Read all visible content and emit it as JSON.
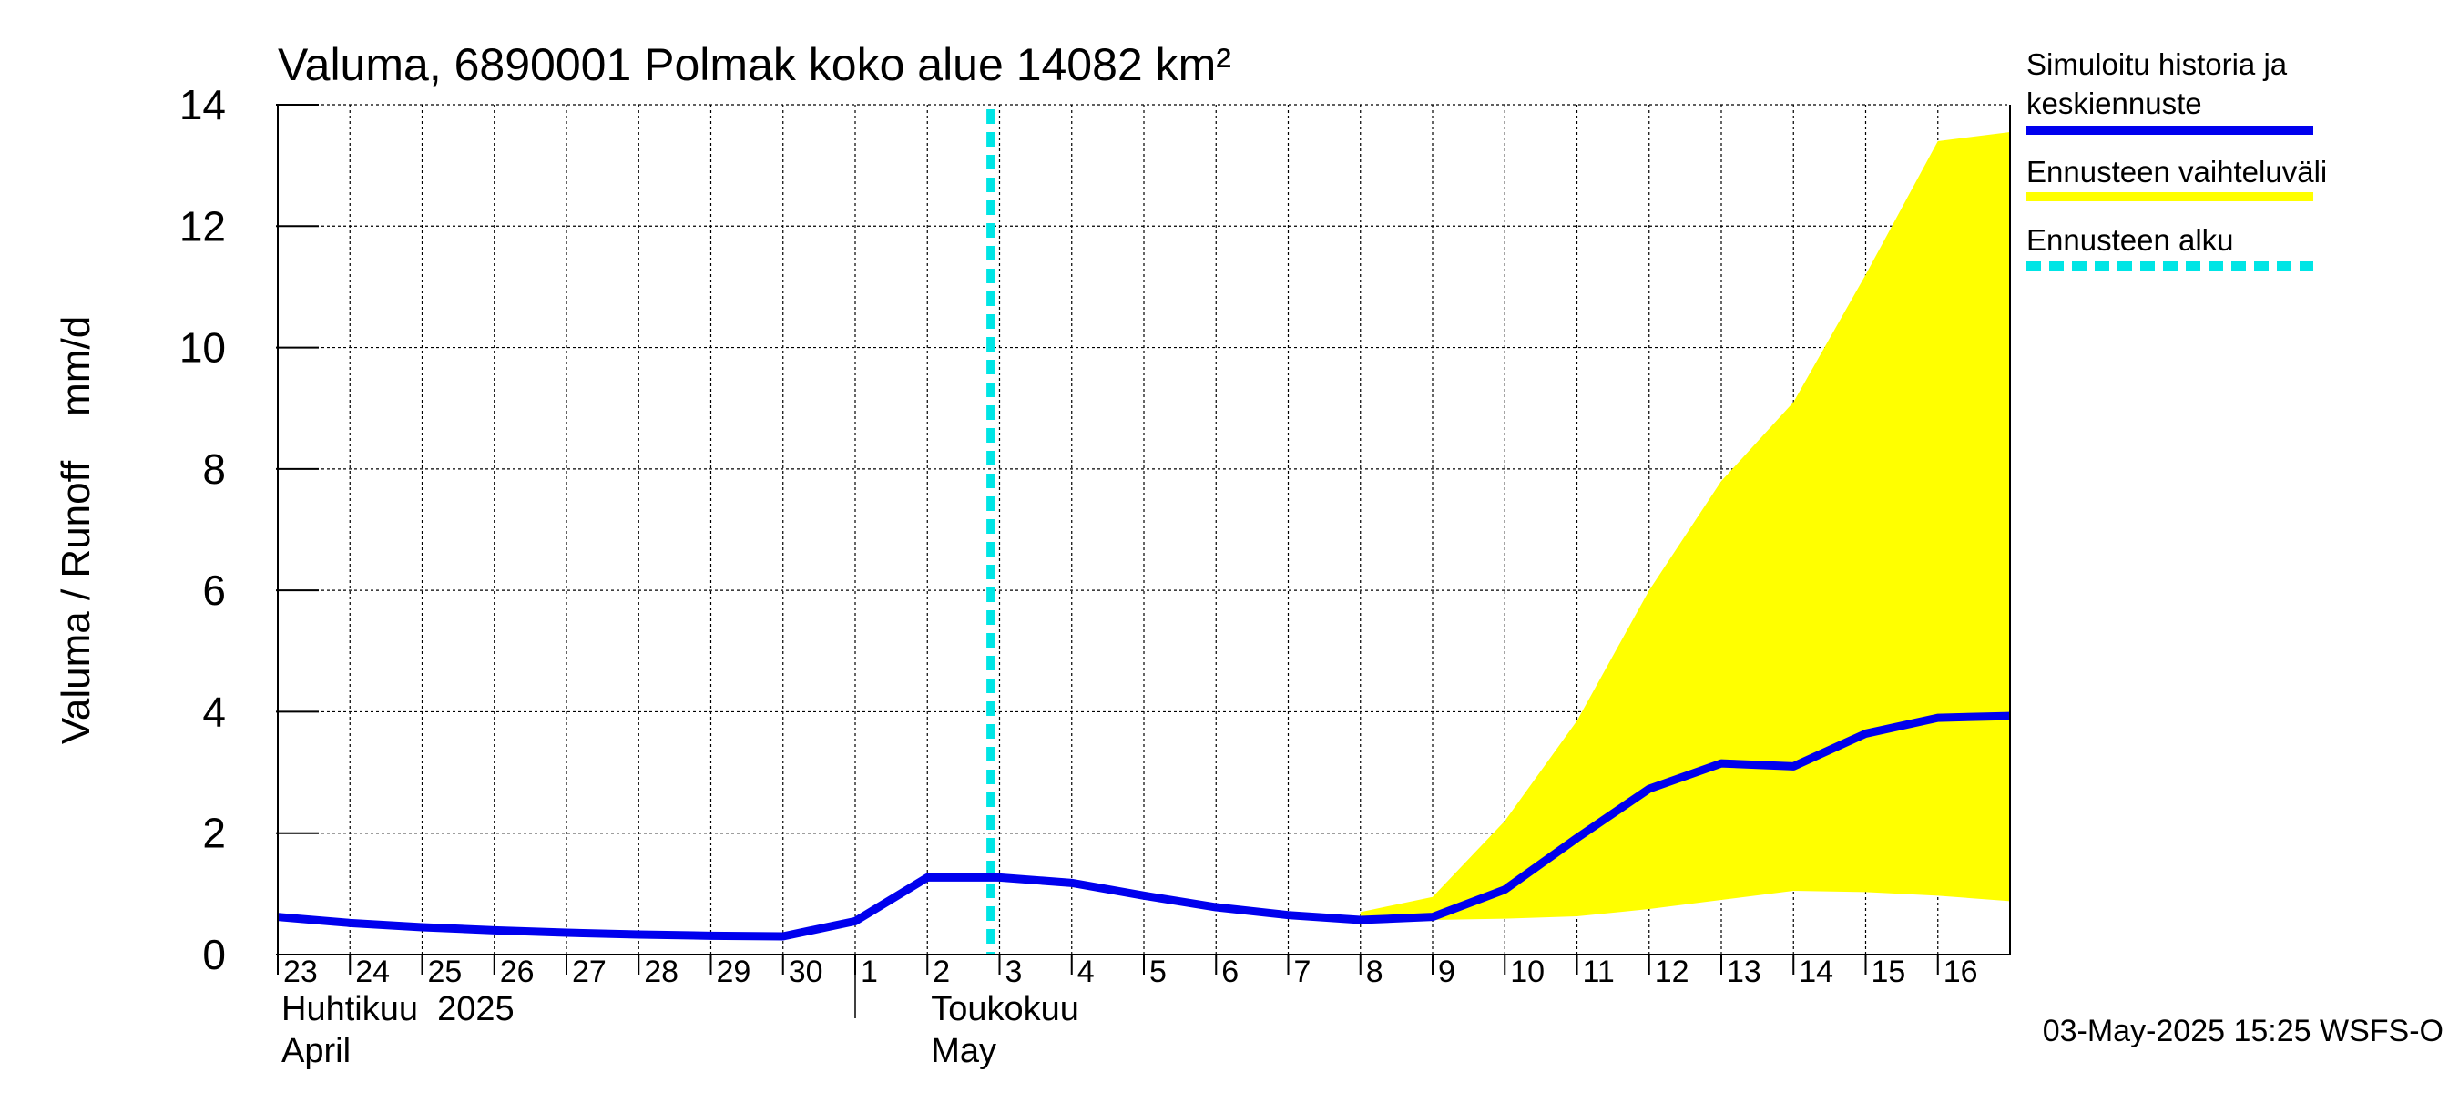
{
  "chart_data": {
    "type": "line",
    "title": "Valuma, 6890001 Polmak koko alue 14082 km²",
    "ylabel": "Valuma / Runoff    mm/d",
    "ylim": [
      0,
      14
    ],
    "yticks": [
      0,
      2,
      4,
      6,
      8,
      10,
      12,
      14
    ],
    "xlim": [
      "2025-04-23",
      "2025-05-16T24:00"
    ],
    "x_day_labels": [
      "23",
      "24",
      "25",
      "26",
      "27",
      "28",
      "29",
      "30",
      "1",
      "2",
      "3",
      "4",
      "5",
      "6",
      "7",
      "8",
      "9",
      "10",
      "11",
      "12",
      "13",
      "14",
      "15",
      "16"
    ],
    "month_labels": [
      {
        "fi": "Huhtikuu  2025",
        "en": "April"
      },
      {
        "fi": "Toukokuu",
        "en": "May"
      }
    ],
    "grid": true,
    "legend_position": "right",
    "forecast_start": "2025-05-02T21:00",
    "series": [
      {
        "name": "Simuloitu historia ja keskiennuste",
        "color": "#0000ee",
        "points": [
          [
            "2025-04-23",
            0.62
          ],
          [
            "2025-04-24",
            0.52
          ],
          [
            "2025-04-25",
            0.45
          ],
          [
            "2025-04-26",
            0.4
          ],
          [
            "2025-04-27",
            0.36
          ],
          [
            "2025-04-28",
            0.33
          ],
          [
            "2025-04-29",
            0.31
          ],
          [
            "2025-04-30",
            0.3
          ],
          [
            "2025-05-01",
            0.55
          ],
          [
            "2025-05-02",
            1.27
          ],
          [
            "2025-05-03",
            1.27
          ],
          [
            "2025-05-04",
            1.18
          ],
          [
            "2025-05-05",
            0.97
          ],
          [
            "2025-05-06",
            0.78
          ],
          [
            "2025-05-07",
            0.65
          ],
          [
            "2025-05-08",
            0.57
          ],
          [
            "2025-05-09",
            0.62
          ],
          [
            "2025-05-10",
            1.07
          ],
          [
            "2025-05-11",
            1.92
          ],
          [
            "2025-05-12",
            2.73
          ],
          [
            "2025-05-13",
            3.15
          ],
          [
            "2025-05-14",
            3.1
          ],
          [
            "2025-05-15",
            3.64
          ],
          [
            "2025-05-16",
            3.9
          ],
          [
            "2025-05-16T24:00",
            3.93
          ]
        ]
      },
      {
        "name": "Ennusteen vaihteluväli",
        "color": "#ffff00",
        "band": [
          [
            "2025-05-08",
            0.57,
            0.7
          ],
          [
            "2025-05-09",
            0.57,
            0.95
          ],
          [
            "2025-05-10",
            0.59,
            2.2
          ],
          [
            "2025-05-11",
            0.63,
            3.85
          ],
          [
            "2025-05-12",
            0.75,
            6.0
          ],
          [
            "2025-05-13",
            0.9,
            7.8
          ],
          [
            "2025-05-14",
            1.05,
            9.1
          ],
          [
            "2025-05-15",
            1.03,
            11.2
          ],
          [
            "2025-05-16",
            0.97,
            13.4
          ],
          [
            "2025-05-16T24:00",
            0.88,
            13.55
          ]
        ]
      },
      {
        "name": "Ennusteen alku",
        "color": "#00e5e5"
      }
    ],
    "footer": "03-May-2025 15:25 WSFS-O"
  }
}
